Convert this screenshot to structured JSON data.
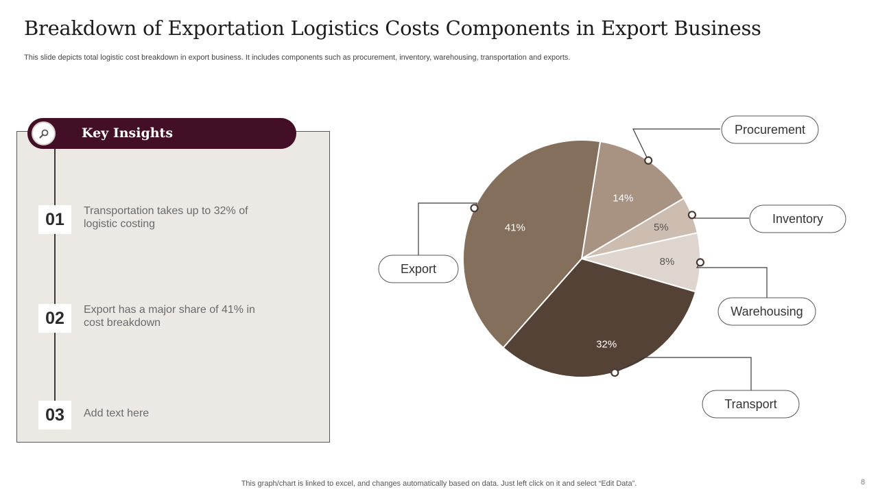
{
  "title": "Breakdown of Exportation Logistics Costs Components in Export Business",
  "subtitle": "This slide depicts total logistic cost breakdown in export business. It includes components such as procurement, inventory, warehousing, transportation and exports.",
  "insights": {
    "title": "Key Insights",
    "icon": "magnifier-icon",
    "items": [
      {
        "number": "01",
        "text": "Transportation  takes up to 32% of logistic costing"
      },
      {
        "number": "02",
        "text": "Export has a major share of 41% in cost breakdown"
      },
      {
        "number": "03",
        "text": "Add text here"
      }
    ]
  },
  "chart_data": {
    "type": "pie",
    "title": "",
    "slices": [
      {
        "label": "Procurement",
        "value": 14,
        "value_label": "14%",
        "color": "#a89282",
        "text_color": "#ffffff"
      },
      {
        "label": "Inventory",
        "value": 5,
        "value_label": "5%",
        "color": "#cdbdb1",
        "text_color": "#555555"
      },
      {
        "label": "Warehousing",
        "value": 8,
        "value_label": "8%",
        "color": "#ded5ce",
        "text_color": "#555555"
      },
      {
        "label": "Transport",
        "value": 32,
        "value_label": "32%",
        "color": "#544236",
        "text_color": "#ffffff"
      },
      {
        "label": "Export",
        "value": 41,
        "value_label": "41%",
        "color": "#846e5c",
        "text_color": "#ffffff"
      }
    ],
    "start_angle_deg": 9,
    "direction": "clockwise"
  },
  "footer": "This graph/chart is linked to excel,  and changes automatically based on data. Just left click on it and select “Edit Data”.",
  "page_number": "8"
}
